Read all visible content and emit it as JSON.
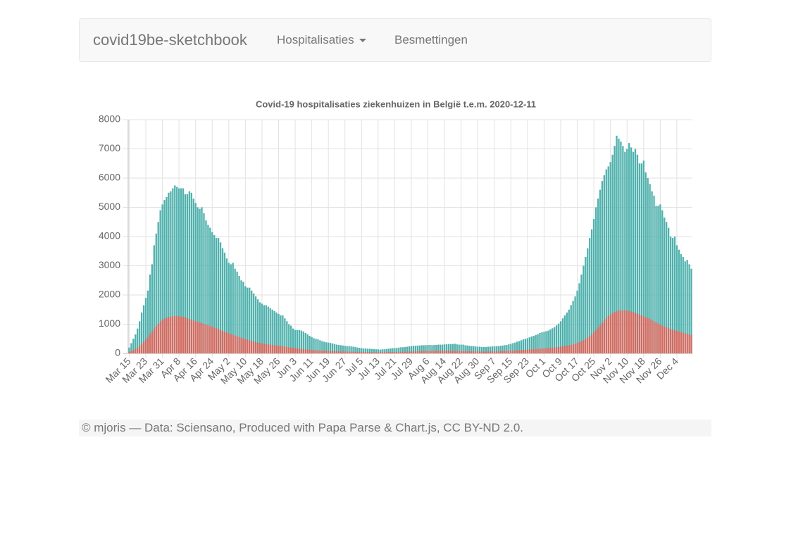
{
  "navbar": {
    "brand": "covid19be-sketchbook",
    "items": [
      "Hospitalisaties",
      "Besmettingen"
    ]
  },
  "chart_data": {
    "type": "bar",
    "title": "Covid-19 hospitalisaties ziekenhuizen in België t.e.m. 2020-12-11",
    "stacked": false,
    "grid": true,
    "ylim": [
      0,
      8000
    ],
    "yticks": [
      0,
      1000,
      2000,
      3000,
      4000,
      5000,
      6000,
      7000,
      8000
    ],
    "categories": [
      "Mar 15",
      null,
      null,
      null,
      null,
      null,
      null,
      null,
      "Mar 23",
      null,
      null,
      null,
      null,
      null,
      null,
      null,
      "Mar 31",
      null,
      null,
      null,
      null,
      null,
      null,
      null,
      "Apr 8",
      null,
      null,
      null,
      null,
      null,
      null,
      null,
      "Apr 16",
      null,
      null,
      null,
      null,
      null,
      null,
      null,
      "Apr 24",
      null,
      null,
      null,
      null,
      null,
      null,
      null,
      "May 2",
      null,
      null,
      null,
      null,
      null,
      null,
      null,
      "May 10",
      null,
      null,
      null,
      null,
      null,
      null,
      null,
      "May 18",
      null,
      null,
      null,
      null,
      null,
      null,
      null,
      "May 26",
      null,
      null,
      null,
      null,
      null,
      null,
      null,
      "Jun 3",
      null,
      null,
      null,
      null,
      null,
      null,
      null,
      "Jun 11",
      null,
      null,
      null,
      null,
      null,
      null,
      null,
      "Jun 19",
      null,
      null,
      null,
      null,
      null,
      null,
      null,
      "Jun 27",
      null,
      null,
      null,
      null,
      null,
      null,
      null,
      "Jul 5",
      null,
      null,
      null,
      null,
      null,
      null,
      null,
      "Jul 13",
      null,
      null,
      null,
      null,
      null,
      null,
      null,
      "Jul 21",
      null,
      null,
      null,
      null,
      null,
      null,
      null,
      "Jul 29",
      null,
      null,
      null,
      null,
      null,
      null,
      null,
      "Aug 6",
      null,
      null,
      null,
      null,
      null,
      null,
      null,
      "Aug 14",
      null,
      null,
      null,
      null,
      null,
      null,
      null,
      "Aug 22",
      null,
      null,
      null,
      null,
      null,
      null,
      null,
      "Aug 30",
      null,
      null,
      null,
      null,
      null,
      null,
      null,
      "Sep 7",
      null,
      null,
      null,
      null,
      null,
      null,
      null,
      "Sep 15",
      null,
      null,
      null,
      null,
      null,
      null,
      null,
      "Sep 23",
      null,
      null,
      null,
      null,
      null,
      null,
      null,
      "Oct 1",
      null,
      null,
      null,
      null,
      null,
      null,
      null,
      "Oct 9",
      null,
      null,
      null,
      null,
      null,
      null,
      null,
      "Oct 17",
      null,
      null,
      null,
      null,
      null,
      null,
      null,
      "Oct 25",
      null,
      null,
      null,
      null,
      null,
      null,
      null,
      "Nov 2",
      null,
      null,
      null,
      null,
      null,
      null,
      null,
      "Nov 10",
      null,
      null,
      null,
      null,
      null,
      null,
      null,
      "Nov 18",
      null,
      null,
      null,
      null,
      null,
      null,
      null,
      "Nov 26",
      null,
      null,
      null,
      null,
      null,
      null,
      null,
      "Dec 4",
      null,
      null,
      null,
      null,
      null,
      null,
      null
    ],
    "series": [
      {
        "color": "#4fb1ad",
        "values": [
          200,
          350,
          500,
          650,
          850,
          1100,
          1400,
          1650,
          1900,
          2150,
          2700,
          3050,
          3700,
          4100,
          4500,
          4900,
          5100,
          5250,
          5350,
          5500,
          5550,
          5650,
          5750,
          5700,
          5650,
          5650,
          5650,
          5450,
          5450,
          5550,
          5500,
          5300,
          5150,
          5000,
          4950,
          5000,
          4800,
          4550,
          4400,
          4300,
          4150,
          4050,
          3950,
          3950,
          3800,
          3600,
          3450,
          3250,
          3100,
          3050,
          3100,
          2900,
          2800,
          2650,
          2500,
          2450,
          2300,
          2250,
          2250,
          2150,
          2050,
          1950,
          1850,
          1750,
          1700,
          1650,
          1650,
          1600,
          1550,
          1500,
          1450,
          1400,
          1350,
          1300,
          1300,
          1200,
          1100,
          1000,
          950,
          850,
          800,
          800,
          800,
          780,
          750,
          700,
          650,
          600,
          560,
          520,
          500,
          480,
          450,
          420,
          400,
          380,
          370,
          360,
          340,
          320,
          300,
          290,
          280,
          270,
          260,
          250,
          250,
          240,
          230,
          220,
          200,
          190,
          180,
          170,
          170,
          160,
          160,
          150,
          150,
          140,
          140,
          130,
          140,
          140,
          150,
          160,
          170,
          180,
          180,
          190,
          200,
          210,
          210,
          220,
          230,
          240,
          250,
          260,
          260,
          270,
          270,
          280,
          280,
          280,
          290,
          290,
          280,
          290,
          290,
          300,
          300,
          300,
          310,
          310,
          320,
          320,
          320,
          330,
          310,
          300,
          300,
          300,
          280,
          270,
          260,
          250,
          250,
          240,
          230,
          230,
          220,
          220,
          220,
          230,
          230,
          240,
          240,
          250,
          250,
          260,
          270,
          280,
          290,
          310,
          330,
          350,
          370,
          400,
          420,
          450,
          480,
          500,
          520,
          550,
          580,
          600,
          630,
          660,
          700,
          720,
          740,
          760,
          780,
          820,
          860,
          900,
          960,
          1020,
          1100,
          1200,
          1300,
          1400,
          1500,
          1650,
          1800,
          1950,
          2150,
          2400,
          2700,
          3000,
          3300,
          3600,
          3950,
          4250,
          4600,
          5000,
          5300,
          5600,
          5900,
          6100,
          6300,
          6400,
          6550,
          6800,
          7100,
          7450,
          7350,
          7250,
          7100,
          6900,
          7000,
          7200,
          7050,
          6900,
          7000,
          6800,
          6500,
          6500,
          6600,
          6200,
          6000,
          5800,
          5550,
          5400,
          5050,
          5050,
          5100,
          4900,
          4650,
          4500,
          4300,
          4000,
          3950,
          4000,
          3700,
          3550,
          3400,
          3300,
          3150,
          3200,
          3050,
          2900
        ]
      },
      {
        "color": "#d7695f",
        "values": [
          50,
          80,
          110,
          150,
          200,
          260,
          320,
          390,
          470,
          550,
          650,
          750,
          850,
          930,
          1010,
          1090,
          1150,
          1190,
          1220,
          1250,
          1260,
          1270,
          1280,
          1280,
          1270,
          1260,
          1250,
          1230,
          1210,
          1180,
          1160,
          1130,
          1100,
          1080,
          1060,
          1040,
          1010,
          990,
          960,
          940,
          910,
          880,
          860,
          830,
          800,
          770,
          740,
          710,
          690,
          660,
          640,
          610,
          580,
          560,
          540,
          510,
          490,
          470,
          450,
          430,
          410,
          390,
          370,
          360,
          340,
          330,
          320,
          310,
          300,
          290,
          280,
          270,
          260,
          250,
          240,
          230,
          220,
          210,
          200,
          190,
          180,
          170,
          160,
          155,
          150,
          140,
          130,
          125,
          120,
          115,
          110,
          105,
          100,
          95,
          90,
          88,
          85,
          82,
          80,
          78,
          75,
          72,
          70,
          68,
          65,
          62,
          60,
          58,
          56,
          54,
          52,
          50,
          48,
          46,
          45,
          44,
          43,
          42,
          40,
          40,
          40,
          40,
          40,
          40,
          42,
          44,
          46,
          48,
          50,
          52,
          54,
          56,
          58,
          60,
          62,
          64,
          66,
          68,
          70,
          72,
          74,
          76,
          78,
          80,
          82,
          84,
          86,
          88,
          90,
          90,
          90,
          90,
          90,
          90,
          90,
          88,
          86,
          84,
          82,
          80,
          78,
          76,
          74,
          72,
          70,
          70,
          70,
          68,
          66,
          64,
          62,
          62,
          62,
          64,
          66,
          68,
          70,
          72,
          75,
          78,
          80,
          82,
          85,
          88,
          92,
          96,
          100,
          105,
          110,
          115,
          120,
          125,
          130,
          135,
          140,
          145,
          150,
          155,
          160,
          170,
          175,
          180,
          185,
          190,
          195,
          200,
          210,
          220,
          230,
          240,
          250,
          260,
          275,
          290,
          310,
          330,
          350,
          380,
          410,
          450,
          490,
          540,
          590,
          650,
          720,
          800,
          880,
          960,
          1040,
          1120,
          1200,
          1270,
          1330,
          1380,
          1420,
          1450,
          1460,
          1470,
          1470,
          1470,
          1460,
          1450,
          1430,
          1410,
          1390,
          1360,
          1330,
          1300,
          1270,
          1240,
          1210,
          1180,
          1140,
          1100,
          1060,
          1020,
          980,
          950,
          920,
          890,
          860,
          830,
          810,
          790,
          770,
          750,
          730,
          710,
          690,
          670,
          650,
          630
        ]
      }
    ]
  },
  "footer": {
    "text": "© mjoris — Data: Sciensano, Produced with Papa Parse & Chart.js, CC BY-ND 2.0."
  }
}
